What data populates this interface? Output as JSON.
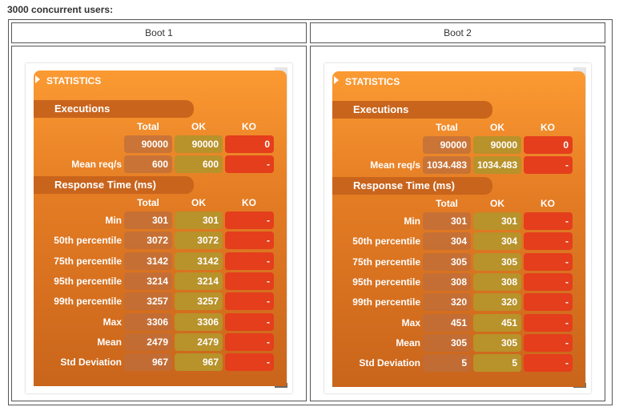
{
  "caption": "3000 concurrent users:",
  "colors": {
    "panel_top": "#fb9a32",
    "panel_bottom": "#c9651b",
    "ko": "#e43e1c",
    "ok": "#b8922a"
  },
  "columns": [
    "Total",
    "OK",
    "KO"
  ],
  "boots": [
    {
      "header": "Boot 1",
      "title": "STATISTICS",
      "executions_label": "Executions",
      "response_label": "Response Time (ms)",
      "executions": [
        {
          "label": "",
          "total": "90000",
          "ok": "90000",
          "ko": "0"
        },
        {
          "label": "Mean req/s",
          "total": "600",
          "ok": "600",
          "ko": "-"
        }
      ],
      "response": [
        {
          "label": "Min",
          "total": "301",
          "ok": "301",
          "ko": "-"
        },
        {
          "label": "50th percentile",
          "total": "3072",
          "ok": "3072",
          "ko": "-"
        },
        {
          "label": "75th percentile",
          "total": "3142",
          "ok": "3142",
          "ko": "-"
        },
        {
          "label": "95th percentile",
          "total": "3214",
          "ok": "3214",
          "ko": "-"
        },
        {
          "label": "99th percentile",
          "total": "3257",
          "ok": "3257",
          "ko": "-"
        },
        {
          "label": "Max",
          "total": "3306",
          "ok": "3306",
          "ko": "-"
        },
        {
          "label": "Mean",
          "total": "2479",
          "ok": "2479",
          "ko": "-"
        },
        {
          "label": "Std Deviation",
          "total": "967",
          "ok": "967",
          "ko": "-"
        }
      ]
    },
    {
      "header": "Boot 2",
      "title": "STATISTICS",
      "executions_label": "Executions",
      "response_label": "Response Time (ms)",
      "executions": [
        {
          "label": "",
          "total": "90000",
          "ok": "90000",
          "ko": "0"
        },
        {
          "label": "Mean req/s",
          "total": "1034.483",
          "ok": "1034.483",
          "ko": "-"
        }
      ],
      "response": [
        {
          "label": "Min",
          "total": "301",
          "ok": "301",
          "ko": "-"
        },
        {
          "label": "50th percentile",
          "total": "304",
          "ok": "304",
          "ko": "-"
        },
        {
          "label": "75th percentile",
          "total": "305",
          "ok": "305",
          "ko": "-"
        },
        {
          "label": "95th percentile",
          "total": "308",
          "ok": "308",
          "ko": "-"
        },
        {
          "label": "99th percentile",
          "total": "320",
          "ok": "320",
          "ko": "-"
        },
        {
          "label": "Max",
          "total": "451",
          "ok": "451",
          "ko": "-"
        },
        {
          "label": "Mean",
          "total": "305",
          "ok": "305",
          "ko": "-"
        },
        {
          "label": "Std Deviation",
          "total": "5",
          "ok": "5",
          "ko": "-"
        }
      ]
    }
  ]
}
